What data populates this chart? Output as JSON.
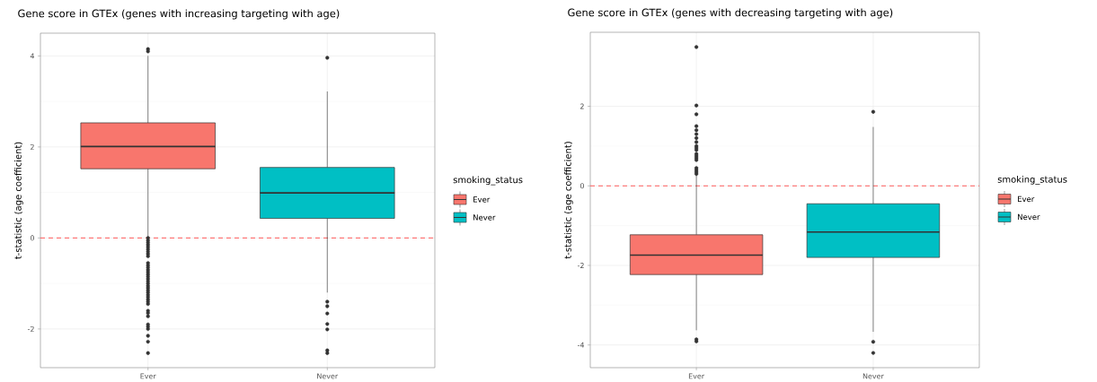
{
  "chart_data": [
    {
      "type": "box",
      "title": "Gene score in GTEx (genes with increasing targeting with age)",
      "ylabel": "t-statistic (age coefficient)",
      "categories": [
        "Ever",
        "Never"
      ],
      "legend_title": "smoking_status",
      "legend": "right",
      "grid": true,
      "ylim": [
        -2.85,
        4.5
      ],
      "yticks": [
        -2,
        0,
        2,
        4
      ],
      "series": [
        {
          "name": "Ever",
          "color": "#f8766d",
          "boxes": [
            {
              "low": 0.0,
              "q1": 1.52,
              "median": 2.01,
              "q3": 2.53,
              "high": 4.0,
              "outliers": [
                4.15,
                4.1,
                0.0,
                -0.05,
                -0.1,
                -0.15,
                -0.2,
                -0.25,
                -0.3,
                -0.35,
                -0.4,
                -0.55,
                -0.6,
                -0.65,
                -0.7,
                -0.75,
                -0.8,
                -0.85,
                -0.9,
                -0.95,
                -1.0,
                -1.05,
                -1.1,
                -1.15,
                -1.2,
                -1.25,
                -1.3,
                -1.35,
                -1.4,
                -1.45,
                -1.6,
                -1.65,
                -1.72,
                -1.9,
                -1.95,
                -2.0,
                -2.15,
                -2.28,
                -2.53
              ]
            },
            null
          ]
        },
        {
          "name": "Never",
          "color": "#00bfc4",
          "boxes": [
            null,
            {
              "low": -1.2,
              "q1": 0.43,
              "median": 0.99,
              "q3": 1.55,
              "high": 3.22,
              "outliers": [
                3.96,
                -1.4,
                -1.5,
                -1.66,
                -1.89,
                -2.01,
                -2.47,
                -2.53
              ]
            }
          ]
        }
      ],
      "ref_lines": [
        {
          "axis": "y",
          "value": 0,
          "color": "#ff5a5a",
          "line_style": "dashed"
        }
      ]
    },
    {
      "type": "box",
      "title": "Gene score in GTEx (genes with decreasing targeting with age)",
      "ylabel": "t-statistic (age coefficient)",
      "categories": [
        "Ever",
        "Never"
      ],
      "legend_title": "smoking_status",
      "legend": "right",
      "grid": true,
      "ylim": [
        -4.57,
        3.86
      ],
      "yticks": [
        -4,
        -2,
        0,
        2
      ],
      "series": [
        {
          "name": "Ever",
          "color": "#f8766d",
          "boxes": [
            {
              "low": -3.63,
              "q1": -2.23,
              "median": -1.74,
              "q3": -1.23,
              "high": 0.28,
              "outliers": [
                3.49,
                2.02,
                1.8,
                1.5,
                1.4,
                1.3,
                1.2,
                1.1,
                1.0,
                0.95,
                0.9,
                0.8,
                0.75,
                0.7,
                0.65,
                0.45,
                0.4,
                0.35,
                0.3,
                -3.86,
                -3.91
              ]
            },
            null
          ]
        },
        {
          "name": "Never",
          "color": "#00bfc4",
          "boxes": [
            null,
            {
              "low": -3.67,
              "q1": -1.8,
              "median": -1.16,
              "q3": -0.45,
              "high": 1.48,
              "outliers": [
                1.86,
                -3.92,
                -4.2
              ]
            }
          ]
        }
      ],
      "ref_lines": [
        {
          "axis": "y",
          "value": 0,
          "color": "#ff5a5a",
          "line_style": "dashed"
        }
      ]
    }
  ]
}
